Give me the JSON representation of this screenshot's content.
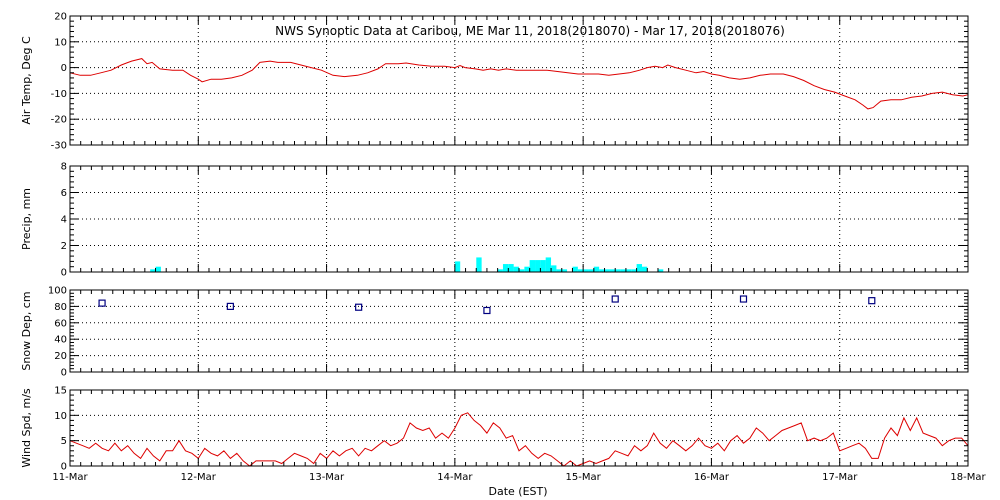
{
  "chart_data": {
    "type": "multi-panel-timeseries",
    "title": "NWS Synoptic Data at Caribou, ME   Mar 11, 2018(2018070) - Mar 17, 2018(2018076)",
    "xlabel": "Date (EST)",
    "x_range_days": [
      0,
      7
    ],
    "x_ticks": [
      {
        "day": 0,
        "label": "11-Mar"
      },
      {
        "day": 1,
        "label": "12-Mar"
      },
      {
        "day": 2,
        "label": "13-Mar"
      },
      {
        "day": 3,
        "label": "14-Mar"
      },
      {
        "day": 4,
        "label": "15-Mar"
      },
      {
        "day": 5,
        "label": "16-Mar"
      },
      {
        "day": 6,
        "label": "17-Mar"
      },
      {
        "day": 7,
        "label": "18-Mar"
      }
    ],
    "grid": true,
    "panels": [
      {
        "id": "air-temp",
        "type": "line",
        "ylabel": "Air Temp, Deg C",
        "ylim": [
          -30,
          20
        ],
        "yticks": [
          -30,
          -20,
          -10,
          0,
          10,
          20
        ],
        "color": "#dd0000",
        "series": [
          [
            0.0,
            -2.0
          ],
          [
            0.08,
            -3.0
          ],
          [
            0.16,
            -3.0
          ],
          [
            0.24,
            -2.0
          ],
          [
            0.32,
            -1.0
          ],
          [
            0.4,
            1.0
          ],
          [
            0.48,
            2.5
          ],
          [
            0.56,
            3.5
          ],
          [
            0.6,
            1.5
          ],
          [
            0.64,
            2.0
          ],
          [
            0.7,
            -0.5
          ],
          [
            0.8,
            -1.0
          ],
          [
            0.88,
            -1.0
          ],
          [
            0.94,
            -3.0
          ],
          [
            1.0,
            -4.5
          ],
          [
            1.03,
            -5.5
          ],
          [
            1.1,
            -4.5
          ],
          [
            1.18,
            -4.5
          ],
          [
            1.26,
            -4.0
          ],
          [
            1.34,
            -3.0
          ],
          [
            1.42,
            -1.0
          ],
          [
            1.48,
            2.0
          ],
          [
            1.56,
            2.5
          ],
          [
            1.62,
            2.0
          ],
          [
            1.72,
            2.0
          ],
          [
            1.8,
            1.0
          ],
          [
            1.88,
            0.0
          ],
          [
            1.96,
            -1.0
          ],
          [
            2.05,
            -3.0
          ],
          [
            2.14,
            -3.5
          ],
          [
            2.24,
            -3.0
          ],
          [
            2.32,
            -2.0
          ],
          [
            2.4,
            -0.5
          ],
          [
            2.46,
            1.5
          ],
          [
            2.56,
            1.5
          ],
          [
            2.62,
            1.8
          ],
          [
            2.72,
            1.0
          ],
          [
            2.82,
            0.5
          ],
          [
            2.92,
            0.5
          ],
          [
            3.0,
            0.0
          ],
          [
            3.04,
            0.8
          ],
          [
            3.08,
            0.0
          ],
          [
            3.16,
            -0.5
          ],
          [
            3.22,
            -1.0
          ],
          [
            3.28,
            -0.5
          ],
          [
            3.34,
            -1.0
          ],
          [
            3.4,
            -0.5
          ],
          [
            3.48,
            -1.0
          ],
          [
            3.56,
            -1.0
          ],
          [
            3.64,
            -1.0
          ],
          [
            3.72,
            -1.0
          ],
          [
            3.8,
            -1.5
          ],
          [
            3.88,
            -2.0
          ],
          [
            3.96,
            -2.5
          ],
          [
            4.04,
            -2.5
          ],
          [
            4.12,
            -2.5
          ],
          [
            4.2,
            -3.0
          ],
          [
            4.28,
            -2.5
          ],
          [
            4.36,
            -2.0
          ],
          [
            4.44,
            -1.0
          ],
          [
            4.5,
            0.0
          ],
          [
            4.56,
            0.5
          ],
          [
            4.62,
            0.0
          ],
          [
            4.66,
            1.0
          ],
          [
            4.72,
            0.0
          ],
          [
            4.8,
            -1.0
          ],
          [
            4.88,
            -2.0
          ],
          [
            4.94,
            -1.5
          ],
          [
            5.0,
            -2.5
          ],
          [
            5.06,
            -3.0
          ],
          [
            5.14,
            -4.0
          ],
          [
            5.22,
            -4.5
          ],
          [
            5.3,
            -4.0
          ],
          [
            5.38,
            -3.0
          ],
          [
            5.46,
            -2.5
          ],
          [
            5.56,
            -2.5
          ],
          [
            5.64,
            -3.5
          ],
          [
            5.72,
            -5.0
          ],
          [
            5.8,
            -7.0
          ],
          [
            5.88,
            -8.5
          ],
          [
            5.96,
            -9.5
          ],
          [
            6.04,
            -11.0
          ],
          [
            6.12,
            -12.5
          ],
          [
            6.18,
            -14.5
          ],
          [
            6.22,
            -16.0
          ],
          [
            6.26,
            -15.5
          ],
          [
            6.32,
            -13.0
          ],
          [
            6.4,
            -12.5
          ],
          [
            6.48,
            -12.5
          ],
          [
            6.56,
            -11.5
          ],
          [
            6.64,
            -11.0
          ],
          [
            6.72,
            -10.0
          ],
          [
            6.8,
            -9.5
          ],
          [
            6.88,
            -10.5
          ],
          [
            6.96,
            -11.0
          ],
          [
            7.0,
            -10.5
          ]
        ]
      },
      {
        "id": "precip",
        "type": "bar",
        "ylabel": "Precip, mm",
        "ylim": [
          0,
          8
        ],
        "yticks": [
          0,
          2,
          4,
          6,
          8
        ],
        "color": "#00ffff",
        "bin_width_days": 0.0417,
        "bars": [
          [
            0.625,
            0.2
          ],
          [
            0.667,
            0.4
          ],
          [
            3.0,
            0.8
          ],
          [
            3.167,
            1.1
          ],
          [
            3.333,
            0.2
          ],
          [
            3.375,
            0.6
          ],
          [
            3.417,
            0.6
          ],
          [
            3.458,
            0.4
          ],
          [
            3.5,
            0.2
          ],
          [
            3.542,
            0.4
          ],
          [
            3.583,
            0.9
          ],
          [
            3.625,
            0.9
          ],
          [
            3.667,
            0.9
          ],
          [
            3.708,
            1.1
          ],
          [
            3.75,
            0.5
          ],
          [
            3.792,
            0.2
          ],
          [
            3.833,
            0.2
          ],
          [
            3.917,
            0.4
          ],
          [
            3.958,
            0.2
          ],
          [
            4.0,
            0.2
          ],
          [
            4.042,
            0.2
          ],
          [
            4.083,
            0.4
          ],
          [
            4.125,
            0.2
          ],
          [
            4.167,
            0.2
          ],
          [
            4.208,
            0.2
          ],
          [
            4.25,
            0.2
          ],
          [
            4.292,
            0.2
          ],
          [
            4.333,
            0.2
          ],
          [
            4.375,
            0.2
          ],
          [
            4.417,
            0.6
          ],
          [
            4.458,
            0.4
          ],
          [
            4.583,
            0.2
          ]
        ]
      },
      {
        "id": "snow-depth",
        "type": "scatter",
        "ylabel": "Snow Dep, cm",
        "ylim": [
          0,
          100
        ],
        "yticks": [
          0,
          20,
          40,
          60,
          80,
          100
        ],
        "color": "#000080",
        "points": [
          [
            0.25,
            84
          ],
          [
            1.25,
            80
          ],
          [
            2.25,
            79
          ],
          [
            3.25,
            75
          ],
          [
            4.25,
            89
          ],
          [
            5.25,
            89
          ],
          [
            6.25,
            87
          ]
        ]
      },
      {
        "id": "wind-speed",
        "type": "line",
        "ylabel": "Wind Spd, m/s",
        "ylim": [
          0,
          15
        ],
        "yticks": [
          0,
          5,
          10,
          15
        ],
        "color": "#dd0000",
        "series": [
          [
            0.0,
            5.0
          ],
          [
            0.05,
            4.5
          ],
          [
            0.1,
            4.0
          ],
          [
            0.15,
            3.5
          ],
          [
            0.2,
            4.5
          ],
          [
            0.25,
            3.5
          ],
          [
            0.3,
            3.0
          ],
          [
            0.35,
            4.5
          ],
          [
            0.4,
            3.0
          ],
          [
            0.45,
            4.0
          ],
          [
            0.5,
            2.5
          ],
          [
            0.55,
            1.5
          ],
          [
            0.6,
            3.5
          ],
          [
            0.65,
            2.0
          ],
          [
            0.7,
            1.0
          ],
          [
            0.75,
            3.0
          ],
          [
            0.8,
            3.0
          ],
          [
            0.85,
            5.0
          ],
          [
            0.9,
            3.0
          ],
          [
            0.95,
            2.5
          ],
          [
            1.0,
            1.5
          ],
          [
            1.05,
            3.5
          ],
          [
            1.1,
            2.5
          ],
          [
            1.15,
            2.0
          ],
          [
            1.2,
            3.0
          ],
          [
            1.25,
            1.5
          ],
          [
            1.3,
            2.5
          ],
          [
            1.35,
            1.0
          ],
          [
            1.4,
            0.0
          ],
          [
            1.45,
            1.0
          ],
          [
            1.5,
            1.0
          ],
          [
            1.55,
            1.0
          ],
          [
            1.6,
            1.0
          ],
          [
            1.65,
            0.5
          ],
          [
            1.7,
            1.5
          ],
          [
            1.75,
            2.5
          ],
          [
            1.8,
            2.0
          ],
          [
            1.85,
            1.5
          ],
          [
            1.9,
            0.5
          ],
          [
            1.95,
            2.5
          ],
          [
            2.0,
            1.5
          ],
          [
            2.05,
            3.0
          ],
          [
            2.1,
            2.0
          ],
          [
            2.15,
            3.0
          ],
          [
            2.2,
            3.5
          ],
          [
            2.25,
            2.0
          ],
          [
            2.3,
            3.5
          ],
          [
            2.35,
            3.0
          ],
          [
            2.4,
            4.0
          ],
          [
            2.45,
            5.0
          ],
          [
            2.5,
            4.0
          ],
          [
            2.55,
            4.5
          ],
          [
            2.6,
            5.5
          ],
          [
            2.65,
            8.5
          ],
          [
            2.7,
            7.5
          ],
          [
            2.75,
            7.0
          ],
          [
            2.8,
            7.5
          ],
          [
            2.85,
            5.5
          ],
          [
            2.9,
            6.5
          ],
          [
            2.95,
            5.5
          ],
          [
            3.0,
            7.5
          ],
          [
            3.05,
            10.0
          ],
          [
            3.1,
            10.5
          ],
          [
            3.15,
            9.0
          ],
          [
            3.2,
            8.0
          ],
          [
            3.25,
            6.5
          ],
          [
            3.3,
            8.5
          ],
          [
            3.35,
            7.5
          ],
          [
            3.4,
            5.5
          ],
          [
            3.45,
            6.0
          ],
          [
            3.5,
            3.0
          ],
          [
            3.55,
            4.0
          ],
          [
            3.6,
            2.5
          ],
          [
            3.65,
            1.5
          ],
          [
            3.7,
            2.5
          ],
          [
            3.75,
            2.0
          ],
          [
            3.8,
            1.0
          ],
          [
            3.85,
            0.0
          ],
          [
            3.9,
            1.0
          ],
          [
            3.95,
            0.0
          ],
          [
            4.0,
            0.5
          ],
          [
            4.05,
            1.0
          ],
          [
            4.1,
            0.5
          ],
          [
            4.15,
            1.0
          ],
          [
            4.2,
            1.5
          ],
          [
            4.25,
            3.0
          ],
          [
            4.3,
            2.5
          ],
          [
            4.35,
            2.0
          ],
          [
            4.4,
            4.0
          ],
          [
            4.45,
            3.0
          ],
          [
            4.5,
            4.0
          ],
          [
            4.55,
            6.5
          ],
          [
            4.6,
            4.5
          ],
          [
            4.65,
            3.5
          ],
          [
            4.7,
            5.0
          ],
          [
            4.75,
            4.0
          ],
          [
            4.8,
            3.0
          ],
          [
            4.85,
            4.0
          ],
          [
            4.9,
            5.5
          ],
          [
            4.95,
            4.0
          ],
          [
            5.0,
            3.5
          ],
          [
            5.05,
            4.5
          ],
          [
            5.1,
            3.0
          ],
          [
            5.15,
            5.0
          ],
          [
            5.2,
            6.0
          ],
          [
            5.25,
            4.5
          ],
          [
            5.3,
            5.5
          ],
          [
            5.35,
            7.5
          ],
          [
            5.4,
            6.5
          ],
          [
            5.45,
            5.0
          ],
          [
            5.5,
            6.0
          ],
          [
            5.55,
            7.0
          ],
          [
            5.6,
            7.5
          ],
          [
            5.65,
            8.0
          ],
          [
            5.7,
            8.5
          ],
          [
            5.75,
            5.0
          ],
          [
            5.8,
            5.5
          ],
          [
            5.85,
            5.0
          ],
          [
            5.9,
            5.5
          ],
          [
            5.95,
            6.5
          ],
          [
            6.0,
            3.0
          ],
          [
            6.05,
            3.5
          ],
          [
            6.1,
            4.0
          ],
          [
            6.15,
            4.5
          ],
          [
            6.2,
            3.5
          ],
          [
            6.25,
            1.5
          ],
          [
            6.3,
            1.5
          ],
          [
            6.35,
            5.5
          ],
          [
            6.4,
            7.5
          ],
          [
            6.45,
            6.0
          ],
          [
            6.5,
            9.5
          ],
          [
            6.55,
            7.0
          ],
          [
            6.6,
            9.5
          ],
          [
            6.65,
            6.5
          ],
          [
            6.7,
            6.0
          ],
          [
            6.75,
            5.5
          ],
          [
            6.8,
            4.0
          ],
          [
            6.85,
            5.0
          ],
          [
            6.9,
            5.5
          ],
          [
            6.95,
            5.5
          ],
          [
            7.0,
            4.0
          ]
        ]
      }
    ]
  }
}
